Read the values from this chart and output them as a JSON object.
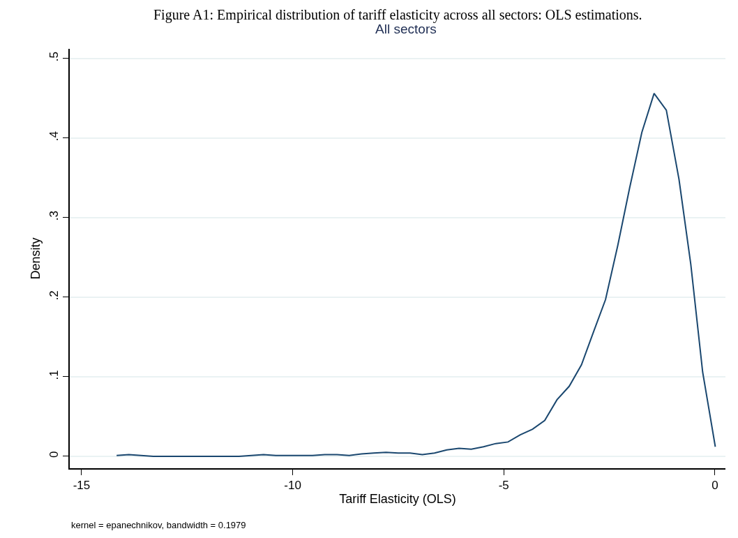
{
  "chart_data": {
    "type": "line",
    "title": "All sectors",
    "xlabel": "Tariff Elasticity (OLS)",
    "ylabel": "Density",
    "annotations": [
      "Figure A1: Empirical distribution of tariff elasticity across all sectors: OLS estimations.",
      "kernel = epanechnikov, bandwidth = 0.1979"
    ],
    "x": [
      -14.17,
      -13.88,
      -13.59,
      -13.3,
      -13.01,
      -12.72,
      -12.43,
      -12.14,
      -11.85,
      -11.56,
      -11.27,
      -10.98,
      -10.69,
      -10.4,
      -10.11,
      -9.82,
      -9.53,
      -9.24,
      -8.95,
      -8.66,
      -8.37,
      -8.08,
      -7.79,
      -7.5,
      -7.22,
      -6.93,
      -6.64,
      -6.35,
      -6.06,
      -5.77,
      -5.48,
      -5.19,
      -4.9,
      -4.61,
      -4.32,
      -4.03,
      -3.74,
      -3.45,
      -3.16,
      -2.87,
      -2.59,
      -2.3,
      -2.02,
      -1.73,
      -1.44,
      -1.15,
      -0.85,
      -0.57,
      -0.29,
      0.01
    ],
    "series": [
      {
        "color": "#1a476f",
        "values": [
          0.001,
          0.002,
          0.001,
          0,
          0,
          0,
          0,
          0,
          0,
          0,
          0,
          0.001,
          0.002,
          0.001,
          0.001,
          0.001,
          0.001,
          0.002,
          0.002,
          0.001,
          0.003,
          0.004,
          0.005,
          0.004,
          0.004,
          0.002,
          0.004,
          0.008,
          0.01,
          0.009,
          0.012,
          0.016,
          0.018,
          0.027,
          0.034,
          0.045,
          0.071,
          0.088,
          0.115,
          0.157,
          0.197,
          0.265,
          0.337,
          0.407,
          0.456,
          0.435,
          0.348,
          0.241,
          0.106,
          0.012
        ]
      }
    ],
    "xlim": [
      -15.28,
      0.25
    ],
    "xticks": [
      -15,
      -10,
      -5,
      0
    ],
    "ylim": [
      -0.015,
      0.512
    ],
    "yticks": [
      0,
      {
        "value": 0.1,
        "label": ".1"
      },
      {
        "value": 0.2,
        "label": ".2"
      },
      {
        "value": 0.3,
        "label": ".3"
      },
      {
        "value": 0.4,
        "label": ".4"
      },
      {
        "value": 0.5,
        "label": ".5"
      }
    ],
    "grid": "y",
    "marker": "none",
    "line_style": "solid"
  }
}
